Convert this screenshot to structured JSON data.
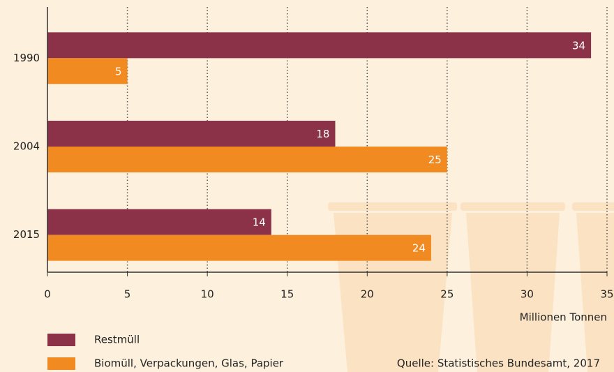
{
  "chart_data": {
    "type": "hbar",
    "categories": [
      "1990",
      "2004",
      "2015"
    ],
    "series": [
      {
        "name": "Restmüll",
        "color": "#8b3249",
        "values": [
          34,
          18,
          14
        ]
      },
      {
        "name": "Biomüll, Verpackungen, Glas, Papier",
        "color": "#f28a22",
        "values": [
          5,
          25,
          24
        ]
      }
    ],
    "xlim": [
      0,
      35
    ],
    "xticks": [
      0,
      5,
      10,
      15,
      20,
      25,
      30,
      35
    ],
    "grid": true,
    "xlabel": "Millionen Tonnen",
    "source": "Quelle: Statistisches Bundesamt, 2017"
  }
}
